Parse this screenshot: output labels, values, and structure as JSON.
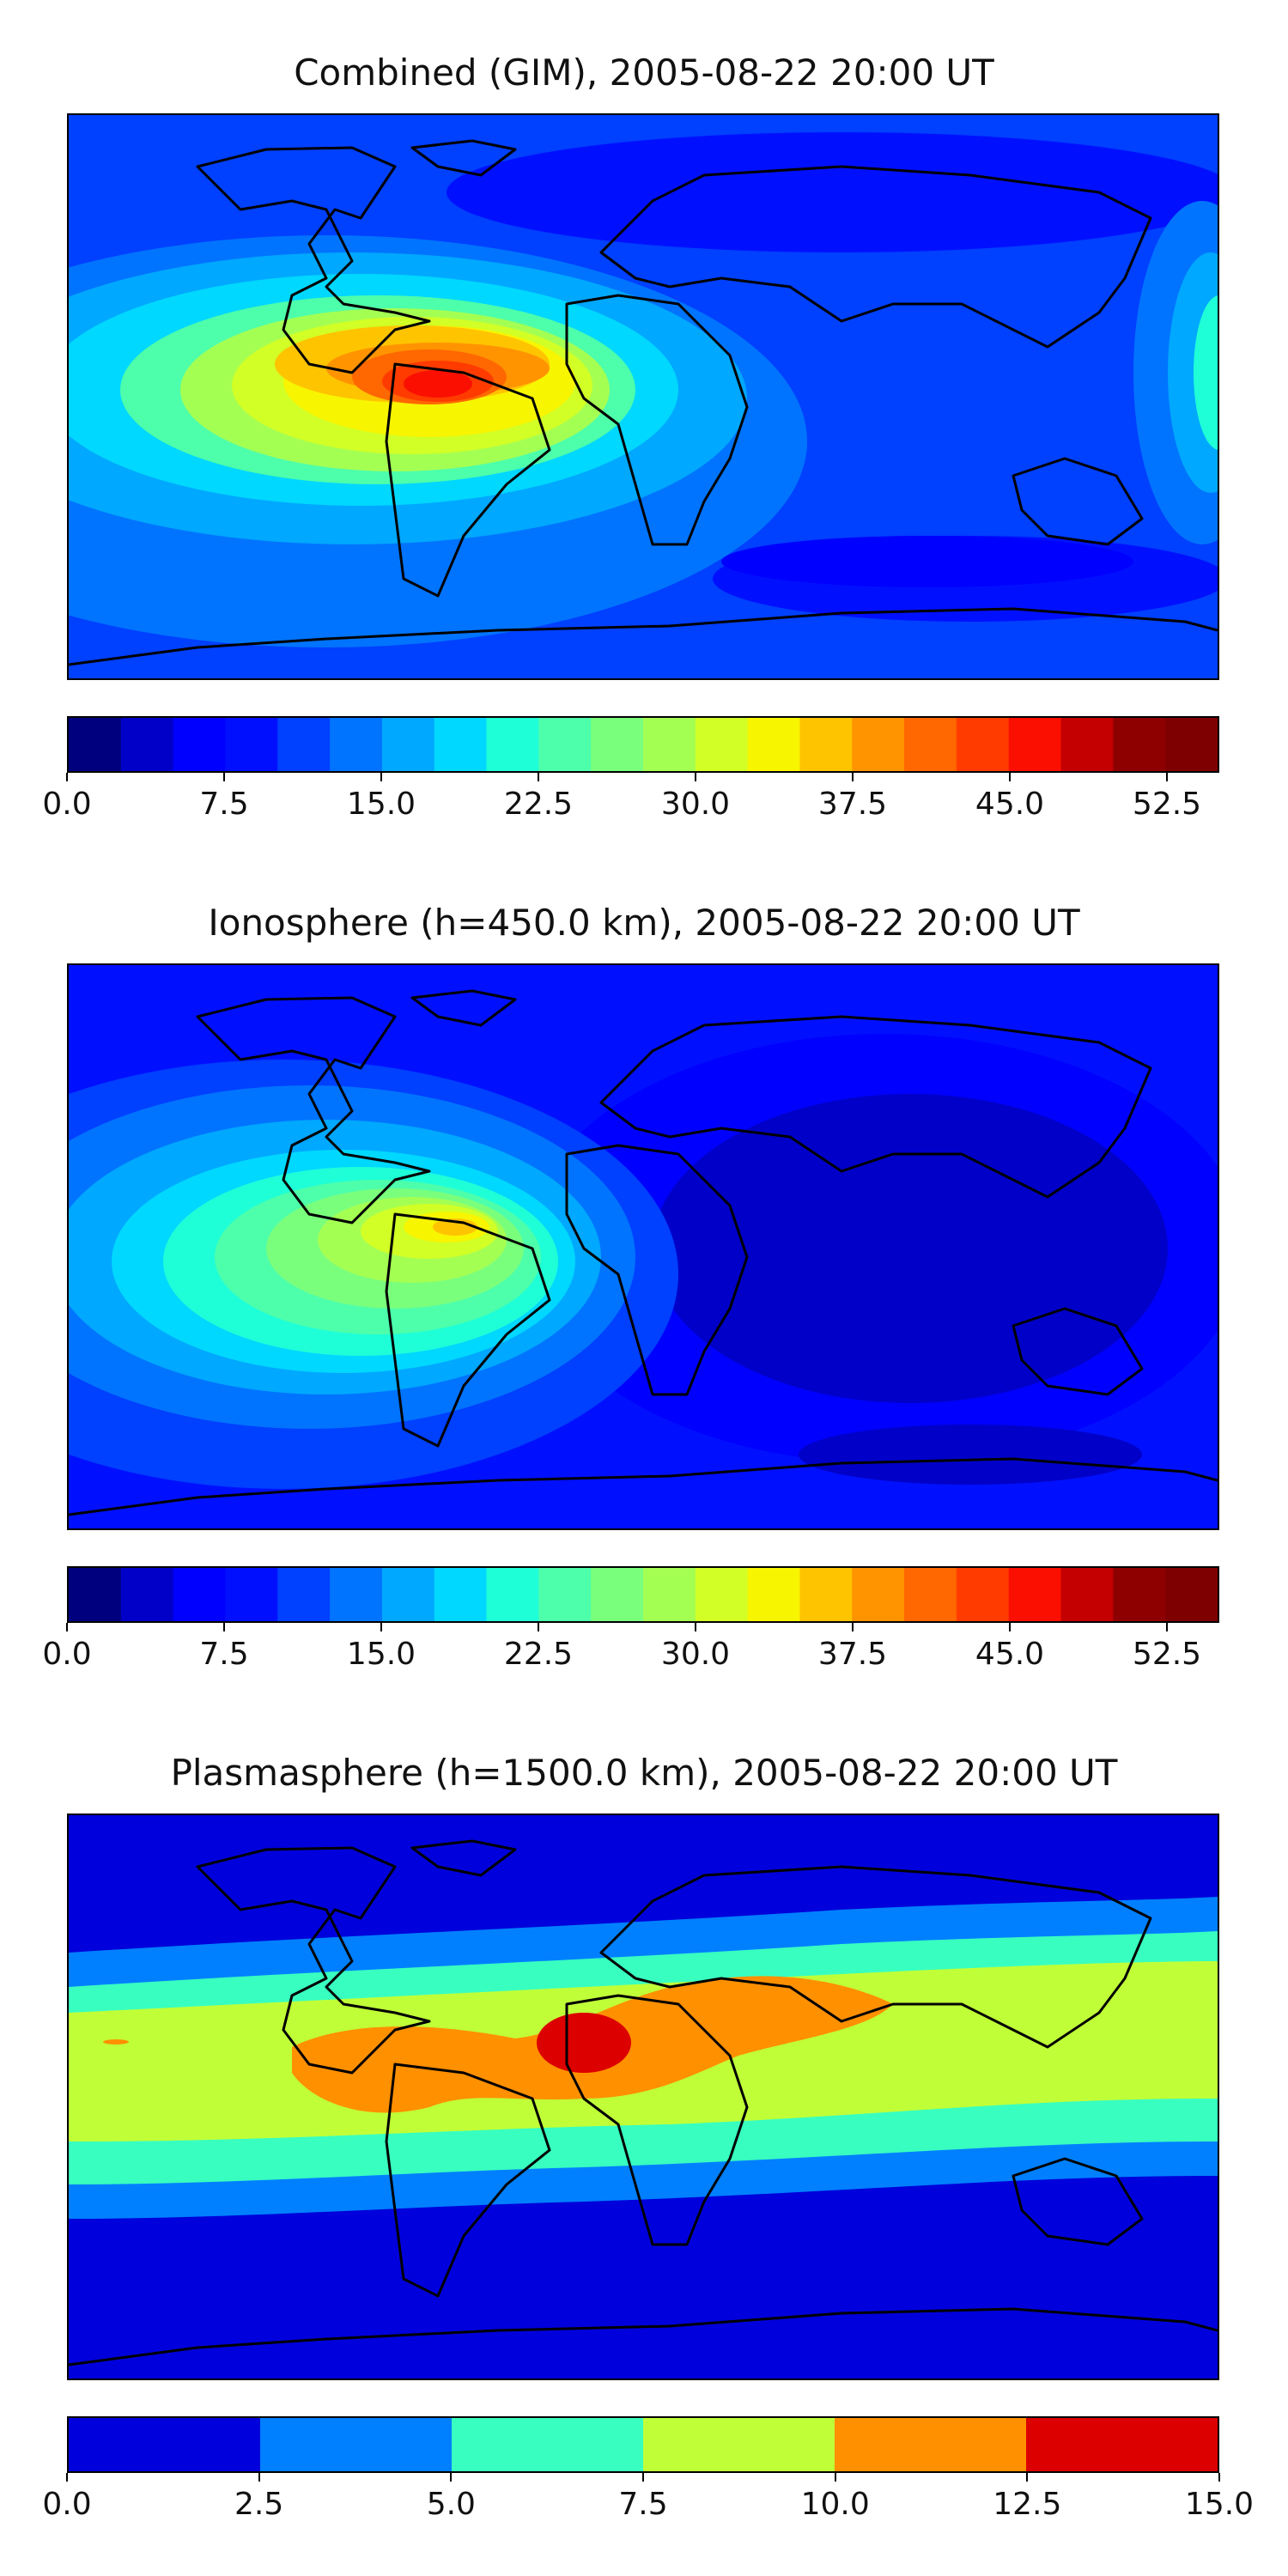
{
  "chart_data": [
    {
      "type": "heatmap",
      "title": "Combined (GIM), 2005-08-22 20:00 UT",
      "colorbar": {
        "range": [
          0.0,
          55.0
        ],
        "levels": 22,
        "ticks": [
          "0.0",
          "7.5",
          "15.0",
          "22.5",
          "30.0",
          "37.5",
          "45.0",
          "52.5"
        ],
        "tick_values": [
          0.0,
          7.5,
          15.0,
          22.5,
          30.0,
          37.5,
          45.0,
          52.5
        ],
        "colors": [
          "#00007f",
          "#0000c8",
          "#0000fe",
          "#0010ff",
          "#0040ff",
          "#0074ff",
          "#00a8ff",
          "#00d8ff",
          "#1fffd7",
          "#4dffaa",
          "#7aff7d",
          "#a4ff53",
          "#d1ff26",
          "#f8f500",
          "#ffc400",
          "#ff9400",
          "#ff6700",
          "#ff3b00",
          "#fa0f00",
          "#c40000",
          "#8e0000",
          "#7f0000"
        ]
      },
      "features": {
        "peak_region": "northern South America",
        "peak_value": 52.5,
        "low_region": "southern Indian Ocean"
      }
    },
    {
      "type": "heatmap",
      "title": "Ionosphere  (h=450.0 km), 2005-08-22 20:00 UT",
      "colorbar": {
        "range": [
          0.0,
          55.0
        ],
        "levels": 22,
        "ticks": [
          "0.0",
          "7.5",
          "15.0",
          "22.5",
          "30.0",
          "37.5",
          "45.0",
          "52.5"
        ],
        "tick_values": [
          0.0,
          7.5,
          15.0,
          22.5,
          30.0,
          37.5,
          45.0,
          52.5
        ],
        "colors": [
          "#00007f",
          "#0000c8",
          "#0000fe",
          "#0010ff",
          "#0040ff",
          "#0074ff",
          "#00a8ff",
          "#00d8ff",
          "#1fffd7",
          "#4dffaa",
          "#7aff7d",
          "#a4ff53",
          "#d1ff26",
          "#f8f500",
          "#ffc400",
          "#ff9400",
          "#ff6700",
          "#ff3b00",
          "#fa0f00",
          "#c40000",
          "#8e0000",
          "#7f0000"
        ]
      },
      "features": {
        "peak_region": "northern South America / Caribbean",
        "peak_value": 37.5,
        "low_region": "Indian Ocean and Asia"
      }
    },
    {
      "type": "heatmap",
      "title": "Plasmasphere (h=1500.0 km), 2005-08-22 20:00 UT",
      "colorbar": {
        "range": [
          0.0,
          15.0
        ],
        "levels": 6,
        "ticks": [
          "0.0",
          "2.5",
          "5.0",
          "7.5",
          "10.0",
          "12.5",
          "15.0"
        ],
        "tick_values": [
          0.0,
          2.5,
          5.0,
          7.5,
          10.0,
          12.5,
          15.0
        ],
        "colors": [
          "#0000dc",
          "#0080ff",
          "#38ffc0",
          "#c0ff38",
          "#ff9000",
          "#dc0000"
        ]
      },
      "features": {
        "peak_region": "tropical Atlantic off West Africa",
        "peak_value": 12.5,
        "low_region": "high latitudes"
      }
    }
  ]
}
